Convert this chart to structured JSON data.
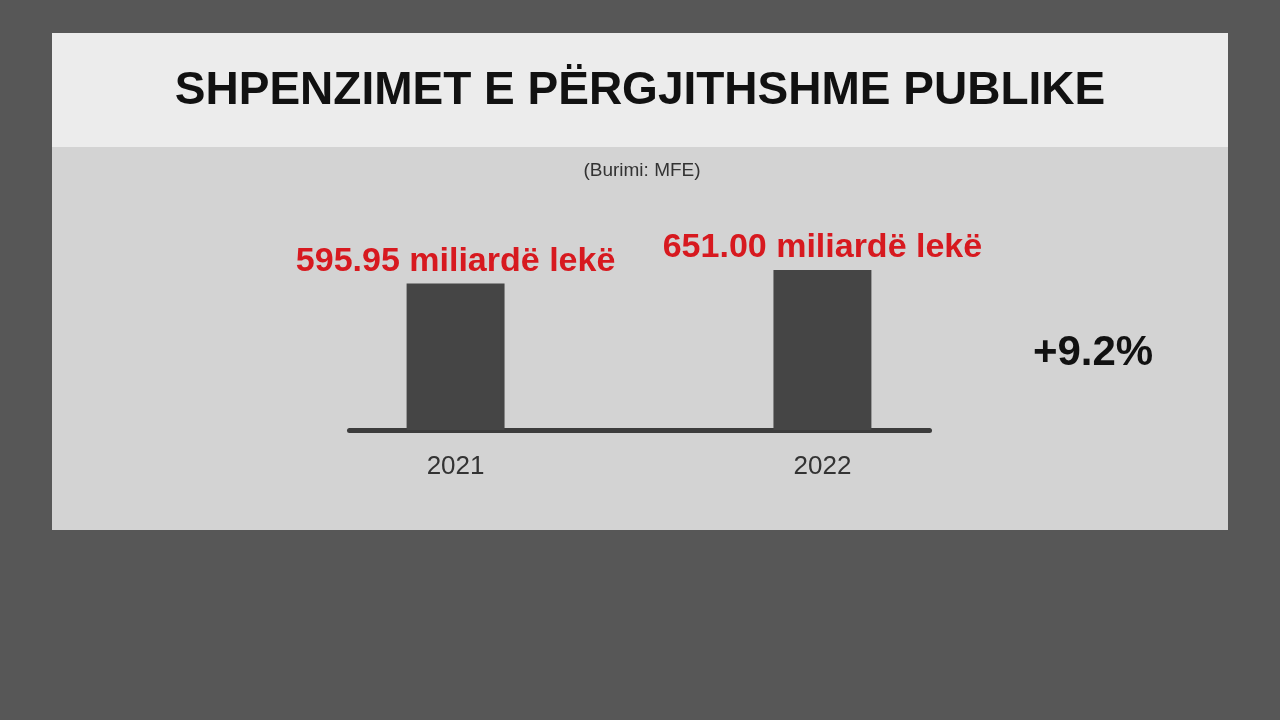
{
  "chart_data": {
    "type": "bar",
    "title": "SHPENZIMET E PËRGJITHSHME PUBLIKE",
    "annotations": [
      "(Burimi: MFE)",
      "+9.2%"
    ],
    "categories": [
      "2021",
      "2022"
    ],
    "values": [
      595.95,
      651.0
    ],
    "value_labels": [
      "595.95 miliardë lekë",
      "651.00 miliardë lekë"
    ],
    "color": "#454545"
  }
}
